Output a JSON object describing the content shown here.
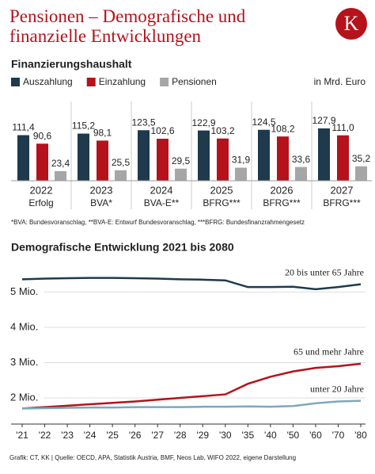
{
  "title": "Pensionen – Demografische und finanzielle Entwicklungen",
  "logo": "K",
  "source": "Grafik: CT, KK | Quelle: OECD, APA, Statistik Austria, BMF, Neos Lab, WIFO 2022, eigene Darstellung",
  "chart_data": [
    {
      "type": "bar",
      "title": "Finanzierungshaushalt",
      "unit_label": "in Mrd. Euro",
      "categories": [
        "2022",
        "2023",
        "2024",
        "2025",
        "2026",
        "2027"
      ],
      "category_notes": [
        "Erfolg",
        "BVA*",
        "BVA-E**",
        "BFRG***",
        "BFRG***",
        "BFRG***"
      ],
      "series": [
        {
          "name": "Auszahlung",
          "color": "#1e3a4c",
          "values": [
            111.4,
            115.2,
            123.5,
            122.9,
            124.5,
            127.9
          ],
          "value_labels": [
            "111,4",
            "115,2",
            "123,5",
            "122,9",
            "124,5",
            "127,9"
          ]
        },
        {
          "name": "Einzahlung",
          "color": "#b5121b",
          "values": [
            90.6,
            98.1,
            102.6,
            103.2,
            108.2,
            111.0
          ],
          "value_labels": [
            "90,6",
            "98,1",
            "102,6",
            "103,2",
            "108,2",
            "111,0"
          ]
        },
        {
          "name": "Pensionen",
          "color": "#a6a6a6",
          "values": [
            23.4,
            25.5,
            29.5,
            31.9,
            33.6,
            35.2
          ],
          "value_labels": [
            "23,4",
            "25,5",
            "29,5",
            "31,9",
            "33,6",
            "35,2"
          ]
        }
      ],
      "footnote": "*BVA: Bundesvoranschlag, **BVA-E: Entwurf Bundesvoranschlag, ***BFRG: Bundesfinanzrahmengesetz"
    },
    {
      "type": "line",
      "title": "Demografische Entwicklung 2021 bis 2080",
      "categories": [
        "'21",
        "'22",
        "'23",
        "'24",
        "'25",
        "'26",
        "'27",
        "'28",
        "'29",
        "'30",
        "'35",
        "'40",
        "'50",
        "'60",
        "'70",
        "'80"
      ],
      "ylim": [
        1.26,
        5.75
      ],
      "yticks": [
        {
          "value": 2,
          "label": "2 Mio."
        },
        {
          "value": 3,
          "label": "3 Mio."
        },
        {
          "value": 4,
          "label": "4 Mio."
        },
        {
          "value": 5,
          "label": "5 Mio."
        }
      ],
      "grid": true,
      "series": [
        {
          "name": "20 bis unter 65 Jahre",
          "color": "#1e3a4c",
          "values": [
            5.36,
            5.38,
            5.39,
            5.4,
            5.4,
            5.39,
            5.38,
            5.36,
            5.35,
            5.33,
            5.14,
            5.14,
            5.15,
            5.08,
            5.14,
            5.22
          ]
        },
        {
          "name": "65 und mehr Jahre",
          "color": "#b5121b",
          "values": [
            1.7,
            1.74,
            1.78,
            1.82,
            1.86,
            1.9,
            1.95,
            2.0,
            2.05,
            2.1,
            2.4,
            2.6,
            2.75,
            2.85,
            2.9,
            2.97
          ]
        },
        {
          "name": "unter 20 Jahre",
          "color": "#7fa7bd",
          "values": [
            1.7,
            1.71,
            1.72,
            1.73,
            1.73,
            1.74,
            1.74,
            1.74,
            1.75,
            1.75,
            1.76,
            1.75,
            1.77,
            1.85,
            1.9,
            1.92
          ]
        }
      ]
    }
  ]
}
